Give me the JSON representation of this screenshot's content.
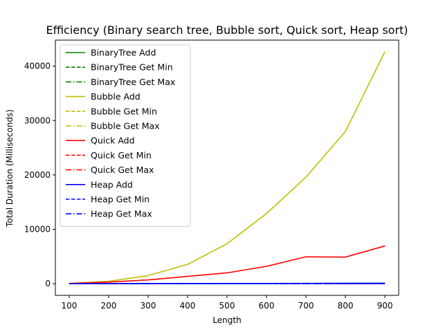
{
  "chart_data": {
    "type": "line",
    "title": "Efficiency (Binary search tree, Bubble sort, Quick sort, Heap sort)",
    "xlabel": "Length",
    "ylabel": "Total Duration (Milliseconds)",
    "x": [
      100,
      200,
      300,
      400,
      500,
      600,
      700,
      800,
      900
    ],
    "xticks": [
      100,
      200,
      300,
      400,
      500,
      600,
      700,
      800,
      900
    ],
    "yticks": [
      0,
      10000,
      20000,
      30000,
      40000
    ],
    "xlim": [
      65,
      935
    ],
    "ylim": [
      -2135,
      44785
    ],
    "grid": false,
    "legend_position": "top-left",
    "series": [
      {
        "name": "BinaryTree Add",
        "color": "#008000",
        "dash": "solid",
        "values": [
          5,
          10,
          20,
          30,
          40,
          55,
          70,
          85,
          100
        ]
      },
      {
        "name": "BinaryTree Get Min",
        "color": "#008000",
        "dash": "dashed",
        "values": [
          0,
          0,
          0,
          0,
          0,
          0,
          0,
          0,
          0
        ]
      },
      {
        "name": "BinaryTree Get Max",
        "color": "#008000",
        "dash": "dashdot",
        "values": [
          0,
          0,
          0,
          0,
          0,
          0,
          0,
          0,
          0
        ]
      },
      {
        "name": "Bubble Add",
        "color": "#bfbf00",
        "dash": "solid",
        "values": [
          50,
          450,
          1500,
          3550,
          7350,
          12900,
          19600,
          28000,
          42650
        ]
      },
      {
        "name": "Bubble Get Min",
        "color": "#bfbf00",
        "dash": "dashed",
        "values": [
          0,
          0,
          0,
          0,
          0,
          0,
          0,
          0,
          0
        ]
      },
      {
        "name": "Bubble Get Max",
        "color": "#bfbf00",
        "dash": "dashdot",
        "values": [
          0,
          0,
          0,
          0,
          0,
          0,
          0,
          0,
          0
        ]
      },
      {
        "name": "Quick Add",
        "color": "#ff0000",
        "dash": "solid",
        "values": [
          50,
          300,
          700,
          1350,
          2000,
          3200,
          4950,
          4900,
          6950
        ]
      },
      {
        "name": "Quick Get Min",
        "color": "#ff0000",
        "dash": "dashed",
        "values": [
          0,
          0,
          0,
          0,
          0,
          0,
          0,
          0,
          0
        ]
      },
      {
        "name": "Quick Get Max",
        "color": "#ff0000",
        "dash": "dashdot",
        "values": [
          0,
          0,
          0,
          0,
          0,
          0,
          0,
          0,
          0
        ]
      },
      {
        "name": "Heap Add",
        "color": "#0000ff",
        "dash": "solid",
        "values": [
          5,
          10,
          20,
          30,
          40,
          50,
          60,
          70,
          80
        ]
      },
      {
        "name": "Heap Get Min",
        "color": "#0000ff",
        "dash": "dashed",
        "values": [
          0,
          0,
          0,
          0,
          0,
          0,
          0,
          0,
          0
        ]
      },
      {
        "name": "Heap Get Max",
        "color": "#0000ff",
        "dash": "dashdot",
        "values": [
          0,
          0,
          0,
          0,
          0,
          0,
          0,
          0,
          0
        ]
      }
    ]
  }
}
